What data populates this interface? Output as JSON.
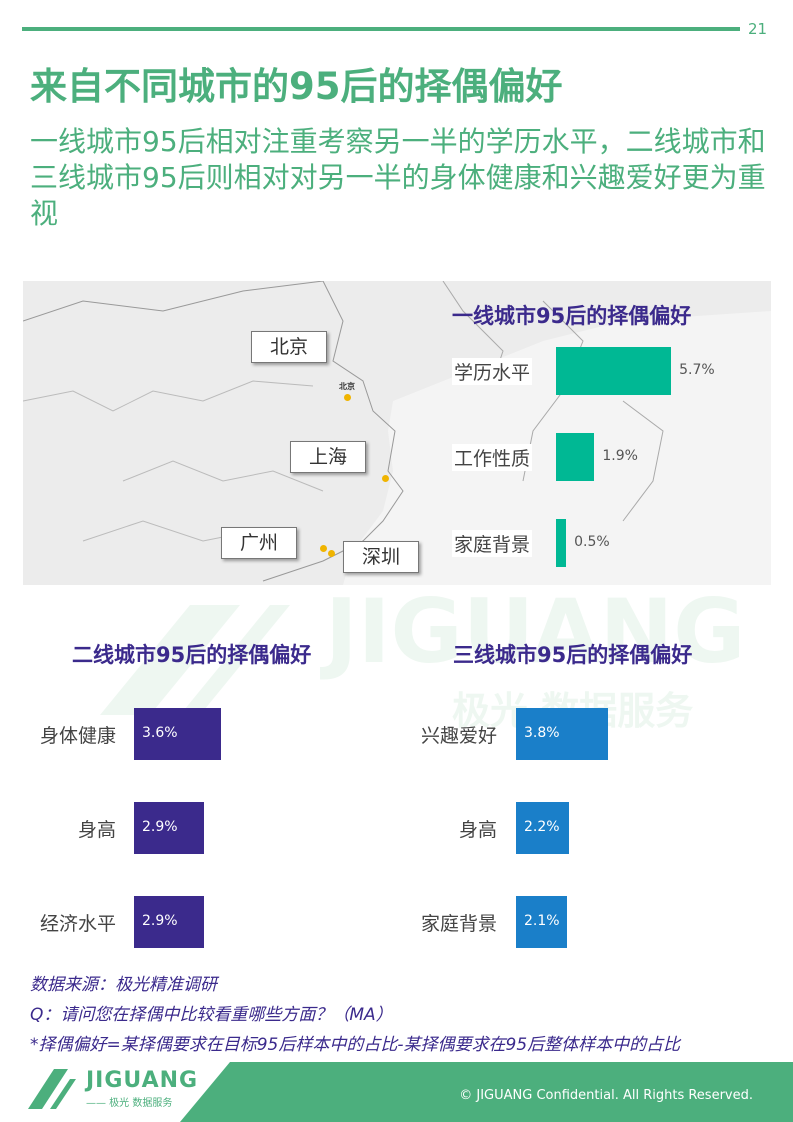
{
  "page_number": "21",
  "title": "来自不同城市的95后的择偶偏好",
  "subtitle": "一线城市95后相对注重考察另一半的学历水平，二线城市和三线城市95后则相对对另一半的身体健康和兴趣爱好更为重视",
  "map": {
    "cities": [
      "北京",
      "上海",
      "广州",
      "深圳"
    ],
    "small_label": "北京"
  },
  "watermark": {
    "brand": "JIGUANG",
    "tagline": "极光 数据服务"
  },
  "colors": {
    "green": "#4caf7d",
    "teal": "#00b894",
    "purple": "#3b2a8c",
    "blue": "#1a7fc9"
  },
  "chart_data": [
    {
      "type": "bar",
      "title": "一线城市95后的择偶偏好",
      "categories": [
        "学历水平",
        "工作性质",
        "家庭背景"
      ],
      "values": [
        5.7,
        1.9,
        0.5
      ],
      "value_labels": [
        "5.7%",
        "1.9%",
        "0.5%"
      ],
      "orientation": "horizontal"
    },
    {
      "type": "bar",
      "title": "二线城市95后的择偶偏好",
      "categories": [
        "身体健康",
        "身高",
        "经济水平"
      ],
      "values": [
        3.6,
        2.9,
        2.9
      ],
      "value_labels": [
        "3.6%",
        "2.9%",
        "2.9%"
      ],
      "orientation": "horizontal"
    },
    {
      "type": "bar",
      "title": "三线城市95后的择偶偏好",
      "categories": [
        "兴趣爱好",
        "身高",
        "家庭背景"
      ],
      "values": [
        3.8,
        2.2,
        2.1
      ],
      "value_labels": [
        "3.8%",
        "2.2%",
        "2.1%"
      ],
      "orientation": "horizontal"
    }
  ],
  "notes": {
    "source": "数据来源：极光精准调研",
    "question": "Q：请问您在择偶中比较看重哪些方面？（MA）",
    "definition": "*择偶偏好=某择偶要求在目标95后样本中的占比-某择偶要求在95后整体样本中的占比"
  },
  "footer": {
    "logo": "JIGUANG",
    "logo_sub": "—— 极光 数据服务",
    "copyright": "© JIGUANG  Confidential. All Rights Reserved."
  }
}
